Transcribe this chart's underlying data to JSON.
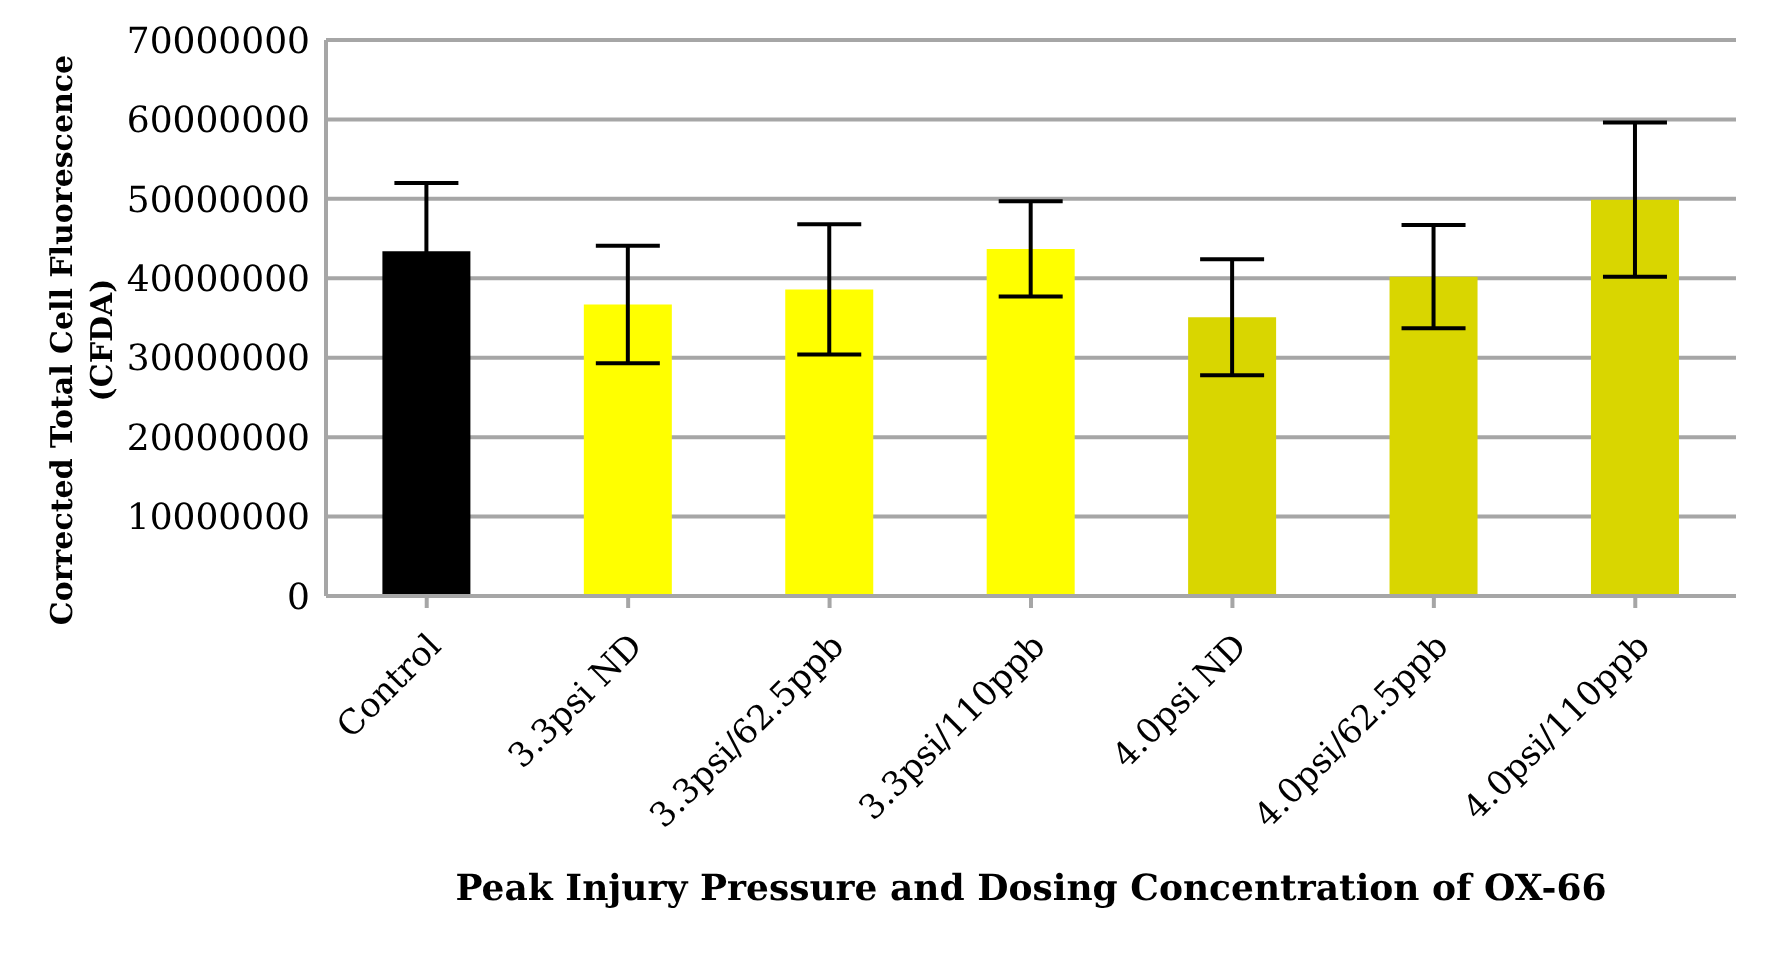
{
  "chart_data": {
    "type": "bar",
    "xlabel": "Peak Injury Pressure and Dosing Concentration of OX-66",
    "ylabel": "Corrected Total Cell Fluorescence (CFDA)",
    "categories": [
      "Control",
      "3.3psi ND",
      "3.3psi/62.5ppb",
      "3.3psi/110ppb",
      "4.0psi ND",
      "4.0psi/62.5ppb",
      "4.0psi/110ppb"
    ],
    "values": [
      43400000,
      36700000,
      38600000,
      43700000,
      35100000,
      40200000,
      49900000
    ],
    "colors": [
      "#000000",
      "#ffff00",
      "#ffff00",
      "#ffff00",
      "#d9d600",
      "#d9d600",
      "#d9d600"
    ],
    "errors": [
      8600000,
      7400000,
      8200000,
      6000000,
      7300000,
      6500000,
      9700000
    ],
    "ylim": [
      0,
      70000000
    ],
    "yticks": [
      0,
      10000000,
      20000000,
      30000000,
      40000000,
      50000000,
      60000000,
      70000000
    ],
    "grid": "y"
  }
}
